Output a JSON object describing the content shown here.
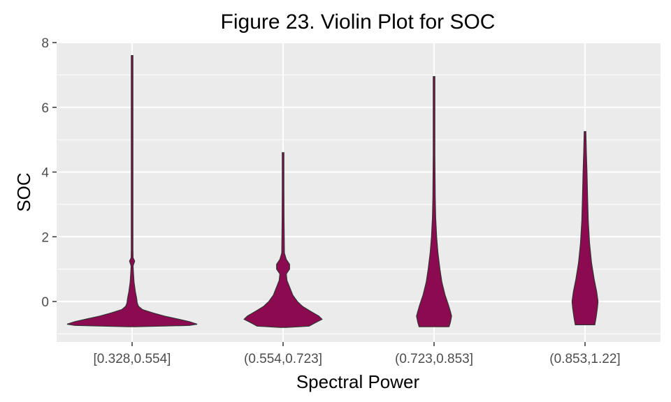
{
  "chart_data": {
    "type": "violin",
    "title": "Figure 23. Violin Plot for SOC",
    "xlabel": "Spectral Power",
    "ylabel": "SOC",
    "ylim": [
      -1.25,
      8
    ],
    "yticks": [
      0,
      2,
      4,
      6,
      8
    ],
    "grid": true,
    "fill_color": "#8b0a50",
    "outline_color": "#333333",
    "panel_color": "#ebebeb",
    "categories": [
      "[0.328,0.554]",
      "(0.554,0.723]",
      "(0.723,0.853]",
      "(0.853,1.22]"
    ],
    "violins": [
      {
        "category": "[0.328,0.554]",
        "min": -0.78,
        "max": 7.6,
        "profile": [
          [
            -0.78,
            0.05
          ],
          [
            -0.74,
            0.88
          ],
          [
            -0.7,
            1.0
          ],
          [
            -0.62,
            0.88
          ],
          [
            -0.55,
            0.72
          ],
          [
            -0.45,
            0.5
          ],
          [
            -0.35,
            0.32
          ],
          [
            -0.25,
            0.16
          ],
          [
            -0.15,
            0.1
          ],
          [
            -0.05,
            0.08
          ],
          [
            0.1,
            0.07
          ],
          [
            0.3,
            0.05
          ],
          [
            0.6,
            0.03
          ],
          [
            0.9,
            0.02
          ],
          [
            1.1,
            0.015
          ],
          [
            1.25,
            0.04
          ],
          [
            1.35,
            0.015
          ],
          [
            1.6,
            0.012
          ],
          [
            3.0,
            0.01
          ],
          [
            6.0,
            0.01
          ],
          [
            7.6,
            0.012
          ]
        ]
      },
      {
        "category": "(0.554,0.723]",
        "min": -0.8,
        "max": 4.6,
        "profile": [
          [
            -0.8,
            0.05
          ],
          [
            -0.76,
            0.4
          ],
          [
            -0.65,
            0.5
          ],
          [
            -0.55,
            0.6
          ],
          [
            -0.45,
            0.55
          ],
          [
            -0.3,
            0.42
          ],
          [
            -0.15,
            0.3
          ],
          [
            0.0,
            0.22
          ],
          [
            0.2,
            0.15
          ],
          [
            0.45,
            0.1
          ],
          [
            0.65,
            0.06
          ],
          [
            0.85,
            0.05
          ],
          [
            1.0,
            0.1
          ],
          [
            1.15,
            0.1
          ],
          [
            1.3,
            0.05
          ],
          [
            1.5,
            0.02
          ],
          [
            2.5,
            0.015
          ],
          [
            3.5,
            0.012
          ],
          [
            4.6,
            0.012
          ]
        ]
      },
      {
        "category": "(0.723,0.853]",
        "min": -0.78,
        "max": 6.95,
        "profile": [
          [
            -0.78,
            0.23
          ],
          [
            -0.65,
            0.25
          ],
          [
            -0.45,
            0.27
          ],
          [
            -0.3,
            0.25
          ],
          [
            -0.1,
            0.22
          ],
          [
            0.2,
            0.17
          ],
          [
            0.6,
            0.12
          ],
          [
            1.0,
            0.09
          ],
          [
            1.5,
            0.06
          ],
          [
            2.0,
            0.04
          ],
          [
            2.6,
            0.025
          ],
          [
            3.2,
            0.018
          ],
          [
            4.5,
            0.012
          ],
          [
            6.0,
            0.01
          ],
          [
            6.95,
            0.01
          ]
        ]
      },
      {
        "category": "(0.853,1.22]",
        "min": -0.72,
        "max": 5.25,
        "profile": [
          [
            -0.72,
            0.15
          ],
          [
            -0.5,
            0.17
          ],
          [
            -0.2,
            0.19
          ],
          [
            0.0,
            0.2
          ],
          [
            0.3,
            0.18
          ],
          [
            0.7,
            0.14
          ],
          [
            1.2,
            0.1
          ],
          [
            1.8,
            0.07
          ],
          [
            2.5,
            0.05
          ],
          [
            3.2,
            0.04
          ],
          [
            4.0,
            0.03
          ],
          [
            4.6,
            0.02
          ],
          [
            5.25,
            0.012
          ]
        ]
      }
    ]
  }
}
